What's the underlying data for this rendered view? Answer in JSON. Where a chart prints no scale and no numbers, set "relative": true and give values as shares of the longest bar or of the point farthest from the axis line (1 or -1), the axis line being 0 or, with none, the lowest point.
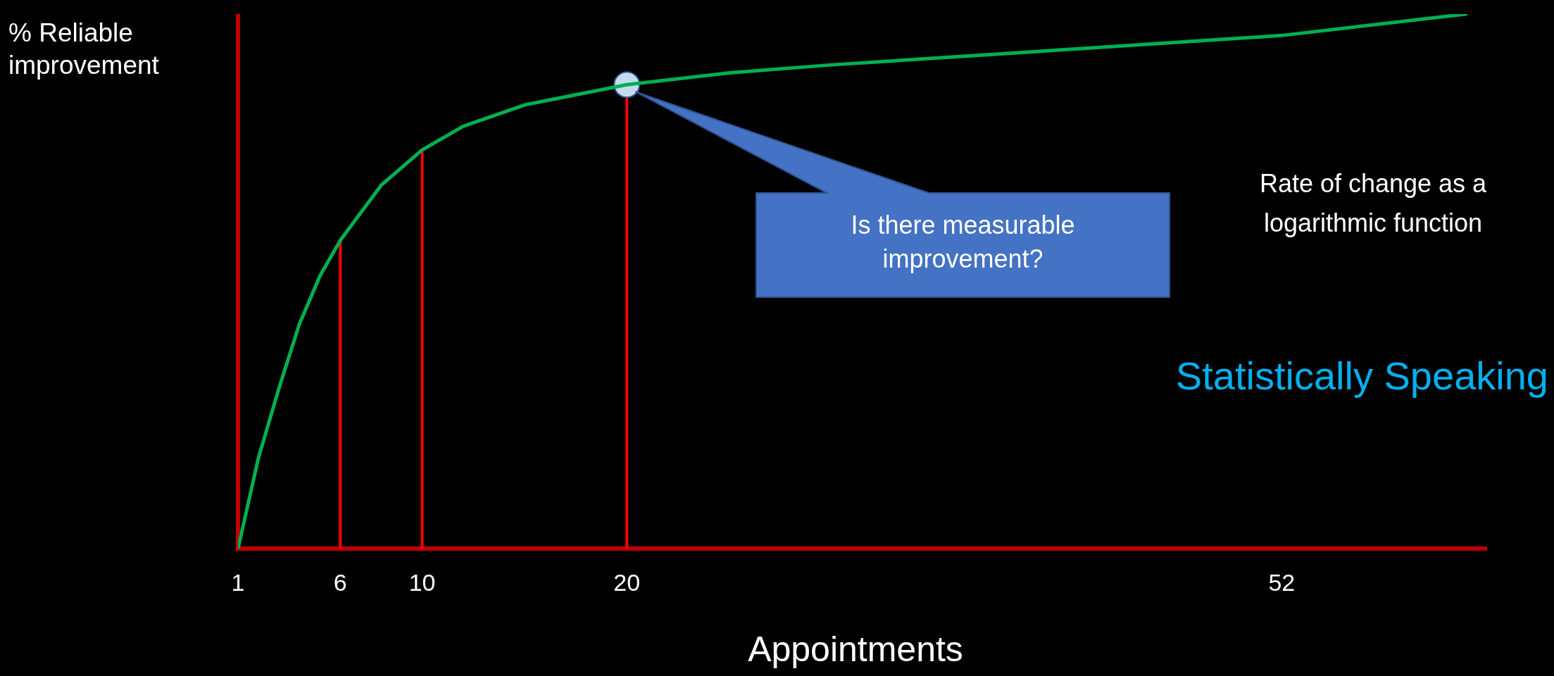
{
  "chart_data": {
    "type": "line",
    "title": "Statistically Speaking",
    "xlabel": "Appointments",
    "ylabel": "% Reliable improvement",
    "relative": true,
    "x": [
      1,
      2,
      3,
      4,
      5,
      6,
      8,
      10,
      12,
      15,
      20,
      25,
      30,
      40,
      52,
      61
    ],
    "series": [
      {
        "color": "#00b050",
        "values": [
          0,
          0.17,
          0.3,
          0.42,
          0.51,
          0.577,
          0.68,
          0.746,
          0.79,
          0.83,
          0.868,
          0.89,
          0.905,
          0.93,
          0.96,
          1
        ]
      },
      {
        "type": "scatter",
        "marker": "circle",
        "color": "#c5dcf0",
        "x": [
          20
        ],
        "values": [
          0.868
        ]
      }
    ],
    "xlim": [
      1,
      62
    ],
    "xticks": [
      1,
      6,
      10,
      20,
      52
    ],
    "ref_lines": [
      {
        "axis": "x",
        "value": 6,
        "color": "#ff0000"
      },
      {
        "axis": "x",
        "value": 10,
        "color": "#ff0000"
      },
      {
        "axis": "x",
        "value": 20,
        "color": "#ff0000"
      }
    ],
    "annotations": [
      "Rate of change as a logarithmic function",
      "Is there measurable improvement?"
    ],
    "grid": false,
    "legend": false,
    "marker": "none",
    "line_style": "solid"
  }
}
